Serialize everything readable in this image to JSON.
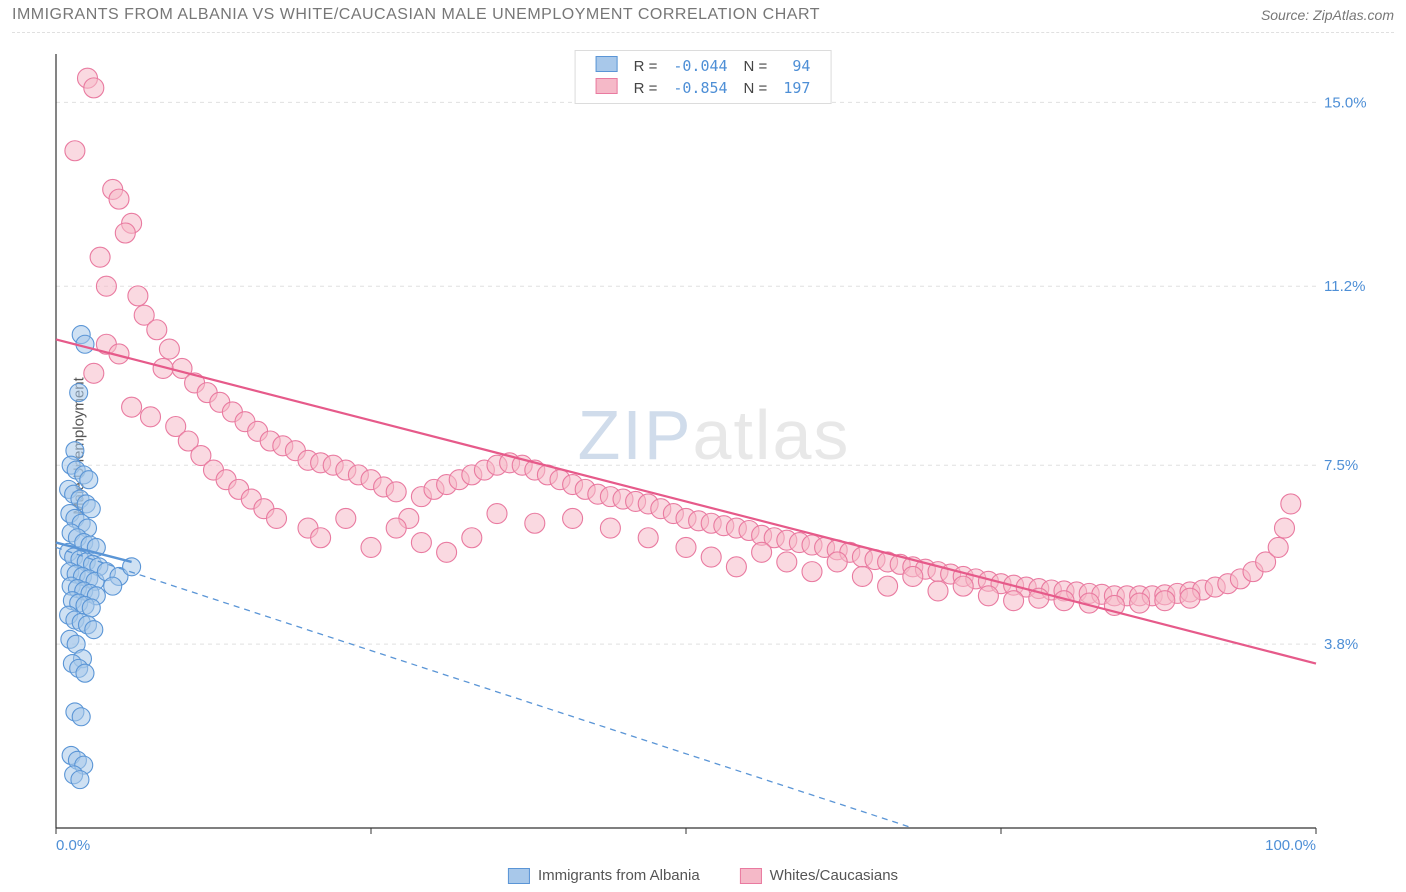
{
  "title": "IMMIGRANTS FROM ALBANIA VS WHITE/CAUCASIAN MALE UNEMPLOYMENT CORRELATION CHART",
  "source": "Source: ZipAtlas.com",
  "ylabel": "Male Unemployment",
  "watermark": "ZIPatlas",
  "chart": {
    "type": "scatter",
    "xlim": [
      0,
      100
    ],
    "ylim": [
      0,
      16
    ],
    "x_ticks": [
      0,
      25,
      50,
      75,
      100
    ],
    "x_tick_labels": [
      "0.0%",
      "",
      "",
      "",
      "100.0%"
    ],
    "y_ticks": [
      3.8,
      7.5,
      11.2,
      15.0
    ],
    "y_tick_labels": [
      "3.8%",
      "7.5%",
      "11.2%",
      "15.0%"
    ],
    "grid_color": "#e0e0e0",
    "axis_color": "#333333",
    "background_color": "#ffffff"
  },
  "series": [
    {
      "name": "Immigrants from Albania",
      "color_fill": "#a8c8ea",
      "color_stroke": "#5a95d6",
      "marker_radius": 9,
      "fill_opacity": 0.55,
      "R": "-0.044",
      "N": "94",
      "regression": {
        "x1": 0,
        "y1": 5.8,
        "x2": 68,
        "y2": 0.0,
        "dash": "6,5",
        "width": 1.3,
        "color": "#5a95d6",
        "solid_x1": 0,
        "solid_y1": 5.9,
        "solid_x2": 6,
        "solid_y2": 5.5
      },
      "points": [
        [
          2.0,
          10.2
        ],
        [
          2.3,
          10.0
        ],
        [
          1.8,
          9.0
        ],
        [
          1.5,
          7.8
        ],
        [
          1.2,
          7.5
        ],
        [
          1.6,
          7.4
        ],
        [
          2.2,
          7.3
        ],
        [
          2.6,
          7.2
        ],
        [
          1.0,
          7.0
        ],
        [
          1.4,
          6.9
        ],
        [
          1.9,
          6.8
        ],
        [
          2.4,
          6.7
        ],
        [
          2.8,
          6.6
        ],
        [
          1.1,
          6.5
        ],
        [
          1.5,
          6.4
        ],
        [
          2.0,
          6.3
        ],
        [
          2.5,
          6.2
        ],
        [
          1.2,
          6.1
        ],
        [
          1.7,
          6.0
        ],
        [
          2.2,
          5.9
        ],
        [
          2.7,
          5.85
        ],
        [
          3.2,
          5.8
        ],
        [
          1.0,
          5.7
        ],
        [
          1.4,
          5.6
        ],
        [
          1.9,
          5.55
        ],
        [
          2.4,
          5.5
        ],
        [
          2.9,
          5.45
        ],
        [
          3.4,
          5.4
        ],
        [
          1.1,
          5.3
        ],
        [
          1.6,
          5.25
        ],
        [
          2.1,
          5.2
        ],
        [
          2.6,
          5.15
        ],
        [
          3.1,
          5.1
        ],
        [
          1.2,
          5.0
        ],
        [
          1.7,
          4.95
        ],
        [
          2.2,
          4.9
        ],
        [
          2.7,
          4.85
        ],
        [
          3.2,
          4.8
        ],
        [
          4.0,
          5.3
        ],
        [
          5.0,
          5.2
        ],
        [
          6.0,
          5.4
        ],
        [
          4.5,
          5.0
        ],
        [
          1.3,
          4.7
        ],
        [
          1.8,
          4.65
        ],
        [
          2.3,
          4.6
        ],
        [
          2.8,
          4.55
        ],
        [
          1.0,
          4.4
        ],
        [
          1.5,
          4.3
        ],
        [
          2.0,
          4.25
        ],
        [
          2.5,
          4.2
        ],
        [
          3.0,
          4.1
        ],
        [
          1.1,
          3.9
        ],
        [
          1.6,
          3.8
        ],
        [
          2.1,
          3.5
        ],
        [
          1.3,
          3.4
        ],
        [
          1.8,
          3.3
        ],
        [
          2.3,
          3.2
        ],
        [
          1.5,
          2.4
        ],
        [
          2.0,
          2.3
        ],
        [
          1.2,
          1.5
        ],
        [
          1.7,
          1.4
        ],
        [
          2.2,
          1.3
        ],
        [
          1.4,
          1.1
        ],
        [
          1.9,
          1.0
        ]
      ]
    },
    {
      "name": "Whites/Caucasians",
      "color_fill": "#f5b9c8",
      "color_stroke": "#e97aa0",
      "marker_radius": 10,
      "fill_opacity": 0.55,
      "R": "-0.854",
      "N": "197",
      "regression": {
        "x1": 0,
        "y1": 10.1,
        "x2": 100,
        "y2": 3.4,
        "dash": "",
        "width": 2.2,
        "color": "#e65a8a"
      },
      "points": [
        [
          2.5,
          15.5
        ],
        [
          3.0,
          15.3
        ],
        [
          1.5,
          14.0
        ],
        [
          4.5,
          13.2
        ],
        [
          5.0,
          13.0
        ],
        [
          6.0,
          12.5
        ],
        [
          5.5,
          12.3
        ],
        [
          4.0,
          11.2
        ],
        [
          3.5,
          11.8
        ],
        [
          6.5,
          11.0
        ],
        [
          7.0,
          10.6
        ],
        [
          8.0,
          10.3
        ],
        [
          4.0,
          10.0
        ],
        [
          5.0,
          9.8
        ],
        [
          9.0,
          9.9
        ],
        [
          10.0,
          9.5
        ],
        [
          3.0,
          9.4
        ],
        [
          8.5,
          9.5
        ],
        [
          11.0,
          9.2
        ],
        [
          12.0,
          9.0
        ],
        [
          6.0,
          8.7
        ],
        [
          7.5,
          8.5
        ],
        [
          13.0,
          8.8
        ],
        [
          14.0,
          8.6
        ],
        [
          9.5,
          8.3
        ],
        [
          15.0,
          8.4
        ],
        [
          16.0,
          8.2
        ],
        [
          10.5,
          8.0
        ],
        [
          17.0,
          8.0
        ],
        [
          18.0,
          7.9
        ],
        [
          11.5,
          7.7
        ],
        [
          19.0,
          7.8
        ],
        [
          20.0,
          7.6
        ],
        [
          12.5,
          7.4
        ],
        [
          21.0,
          7.55
        ],
        [
          22.0,
          7.5
        ],
        [
          13.5,
          7.2
        ],
        [
          23.0,
          7.4
        ],
        [
          24.0,
          7.3
        ],
        [
          14.5,
          7.0
        ],
        [
          25.0,
          7.2
        ],
        [
          26.0,
          7.05
        ],
        [
          15.5,
          6.8
        ],
        [
          27.0,
          6.95
        ],
        [
          28.0,
          6.4
        ],
        [
          16.5,
          6.6
        ],
        [
          29.0,
          6.85
        ],
        [
          30.0,
          7.0
        ],
        [
          17.5,
          6.4
        ],
        [
          31.0,
          7.1
        ],
        [
          32.0,
          7.2
        ],
        [
          33.0,
          7.3
        ],
        [
          34.0,
          7.4
        ],
        [
          35.0,
          7.5
        ],
        [
          36.0,
          7.55
        ],
        [
          37.0,
          7.5
        ],
        [
          38.0,
          7.4
        ],
        [
          39.0,
          7.3
        ],
        [
          40.0,
          7.2
        ],
        [
          41.0,
          7.1
        ],
        [
          42.0,
          7.0
        ],
        [
          43.0,
          6.9
        ],
        [
          44.0,
          6.85
        ],
        [
          45.0,
          6.8
        ],
        [
          46.0,
          6.75
        ],
        [
          47.0,
          6.7
        ],
        [
          48.0,
          6.6
        ],
        [
          20.0,
          6.2
        ],
        [
          21.0,
          6.0
        ],
        [
          23.0,
          6.4
        ],
        [
          25.0,
          5.8
        ],
        [
          27.0,
          6.2
        ],
        [
          29.0,
          5.9
        ],
        [
          31.0,
          5.7
        ],
        [
          33.0,
          6.0
        ],
        [
          49.0,
          6.5
        ],
        [
          50.0,
          6.4
        ],
        [
          51.0,
          6.35
        ],
        [
          52.0,
          6.3
        ],
        [
          53.0,
          6.25
        ],
        [
          54.0,
          6.2
        ],
        [
          55.0,
          6.15
        ],
        [
          56.0,
          6.05
        ],
        [
          57.0,
          6.0
        ],
        [
          58.0,
          5.95
        ],
        [
          59.0,
          5.9
        ],
        [
          60.0,
          5.85
        ],
        [
          61.0,
          5.8
        ],
        [
          62.0,
          5.75
        ],
        [
          63.0,
          5.7
        ],
        [
          64.0,
          5.6
        ],
        [
          65.0,
          5.55
        ],
        [
          66.0,
          5.5
        ],
        [
          67.0,
          5.45
        ],
        [
          68.0,
          5.4
        ],
        [
          69.0,
          5.35
        ],
        [
          70.0,
          5.3
        ],
        [
          71.0,
          5.25
        ],
        [
          72.0,
          5.2
        ],
        [
          73.0,
          5.15
        ],
        [
          74.0,
          5.1
        ],
        [
          75.0,
          5.05
        ],
        [
          76.0,
          5.02
        ],
        [
          77.0,
          4.98
        ],
        [
          78.0,
          4.95
        ],
        [
          79.0,
          4.92
        ],
        [
          80.0,
          4.9
        ],
        [
          81.0,
          4.88
        ],
        [
          82.0,
          4.85
        ],
        [
          83.0,
          4.83
        ],
        [
          84.0,
          4.8
        ],
        [
          85.0,
          4.8
        ],
        [
          86.0,
          4.8
        ],
        [
          87.0,
          4.8
        ],
        [
          88.0,
          4.82
        ],
        [
          89.0,
          4.85
        ],
        [
          90.0,
          4.88
        ],
        [
          91.0,
          4.92
        ],
        [
          92.0,
          4.98
        ],
        [
          93.0,
          5.05
        ],
        [
          94.0,
          5.15
        ],
        [
          95.0,
          5.3
        ],
        [
          96.0,
          5.5
        ],
        [
          97.0,
          5.8
        ],
        [
          97.5,
          6.2
        ],
        [
          98.0,
          6.7
        ],
        [
          50.0,
          5.8
        ],
        [
          52.0,
          5.6
        ],
        [
          54.0,
          5.4
        ],
        [
          56.0,
          5.7
        ],
        [
          58.0,
          5.5
        ],
        [
          60.0,
          5.3
        ],
        [
          62.0,
          5.5
        ],
        [
          64.0,
          5.2
        ],
        [
          66.0,
          5.0
        ],
        [
          68.0,
          5.2
        ],
        [
          70.0,
          4.9
        ],
        [
          72.0,
          5.0
        ],
        [
          74.0,
          4.8
        ],
        [
          76.0,
          4.7
        ],
        [
          78.0,
          4.75
        ],
        [
          80.0,
          4.7
        ],
        [
          82.0,
          4.65
        ],
        [
          84.0,
          4.6
        ],
        [
          86.0,
          4.65
        ],
        [
          88.0,
          4.7
        ],
        [
          90.0,
          4.75
        ],
        [
          35.0,
          6.5
        ],
        [
          38.0,
          6.3
        ],
        [
          41.0,
          6.4
        ],
        [
          44.0,
          6.2
        ],
        [
          47.0,
          6.0
        ]
      ]
    }
  ],
  "legend_bottom": [
    {
      "label": "Immigrants from Albania",
      "fill": "#a8c8ea",
      "stroke": "#5a95d6"
    },
    {
      "label": "Whites/Caucasians",
      "fill": "#f5b9c8",
      "stroke": "#e97aa0"
    }
  ]
}
